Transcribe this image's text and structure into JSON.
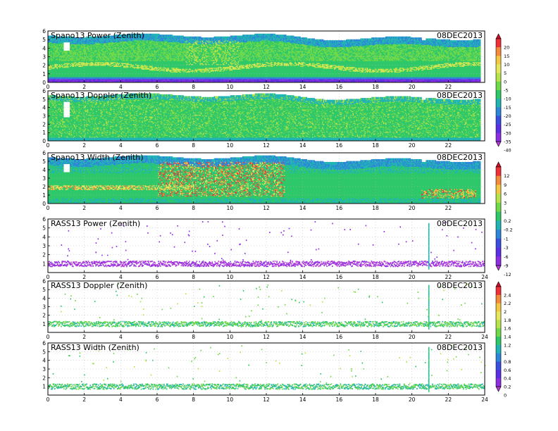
{
  "chart_data": [
    {
      "type": "heatmap",
      "title": "Spano13 Power (Zenith)",
      "date": "08DEC2013",
      "xlim": [
        0,
        24
      ],
      "ylim": [
        0,
        6
      ],
      "xticks": [
        0,
        2,
        4,
        6,
        8,
        10,
        12,
        14,
        16,
        18,
        20,
        22
      ],
      "yticks": [
        0,
        1,
        2,
        3,
        4,
        5,
        6
      ],
      "grid": true,
      "variable": "power",
      "coverage": "full"
    },
    {
      "type": "heatmap",
      "title": "Spano13 Doppler (Zenith)",
      "date": "08DEC2013",
      "xlim": [
        0,
        24
      ],
      "ylim": [
        0,
        6
      ],
      "xticks": [
        0,
        2,
        4,
        6,
        8,
        10,
        12,
        14,
        16,
        18,
        20,
        22
      ],
      "yticks": [
        0,
        1,
        2,
        3,
        4,
        5,
        6
      ],
      "grid": true,
      "variable": "doppler",
      "coverage": "full"
    },
    {
      "type": "heatmap",
      "title": "Spano13 Width (Zenith)",
      "date": "08DEC2013",
      "xlim": [
        0,
        24
      ],
      "ylim": [
        0,
        6
      ],
      "xticks": [
        0,
        2,
        4,
        6,
        8,
        10,
        12,
        14,
        16,
        18,
        20,
        22
      ],
      "yticks": [
        0,
        1,
        2,
        3,
        4,
        5,
        6
      ],
      "grid": true,
      "variable": "width",
      "coverage": "full"
    },
    {
      "type": "scatter",
      "title": "RASS13 Power (Zenith)",
      "date": "08DEC2013",
      "xlim": [
        0,
        24
      ],
      "ylim": [
        0,
        6
      ],
      "xticks": [
        0,
        2,
        4,
        6,
        8,
        10,
        12,
        14,
        16,
        18,
        20,
        22,
        24
      ],
      "yticks": [
        1,
        2,
        3,
        4,
        5,
        6
      ],
      "grid": true,
      "variable": "rass_power",
      "coverage": "sparse"
    },
    {
      "type": "scatter",
      "title": "RASS13 Doppler (Zenith)",
      "date": "08DEC2013",
      "xlim": [
        0,
        24
      ],
      "ylim": [
        0,
        6
      ],
      "xticks": [
        0,
        2,
        4,
        6,
        8,
        10,
        12,
        14,
        16,
        18,
        20,
        22,
        24
      ],
      "yticks": [
        1,
        2,
        3,
        4,
        5,
        6
      ],
      "grid": true,
      "variable": "rass_doppler",
      "coverage": "sparse"
    },
    {
      "type": "scatter",
      "title": "RASS13 Width (Zenith)",
      "date": "08DEC2013",
      "xlim": [
        0,
        24
      ],
      "ylim": [
        0,
        6
      ],
      "xticks": [
        0,
        2,
        4,
        6,
        8,
        10,
        12,
        14,
        16,
        18,
        20,
        22,
        24
      ],
      "yticks": [
        1,
        2,
        3,
        4,
        5,
        6
      ],
      "grid": true,
      "variable": "rass_width",
      "coverage": "sparse"
    }
  ],
  "colorbars": [
    {
      "levels": [
        "20",
        "15",
        "10",
        "5",
        "0",
        "-5",
        "-10",
        "-15",
        "-20",
        "-25",
        "-30",
        "-35",
        "-40"
      ],
      "colors": [
        "#d0102a",
        "#f03038",
        "#f58a3a",
        "#f5c842",
        "#e6e85a",
        "#b6e34a",
        "#6fd94a",
        "#2ec86a",
        "#21b4b4",
        "#2e86d9",
        "#3a4fe0",
        "#5b2fe3",
        "#8d2ee3",
        "#b83bd9"
      ]
    },
    {
      "levels": [
        "12",
        "9",
        "6",
        "3",
        "1",
        "0.2",
        "-0.2",
        "-1",
        "-3",
        "-6",
        "-9",
        "-12"
      ],
      "colors": [
        "#d0102a",
        "#f03038",
        "#f58a3a",
        "#f5c842",
        "#b6e34a",
        "#6fd94a",
        "#2ec86a",
        "#21b4b4",
        "#2e86d9",
        "#3a4fe0",
        "#5b2fe3",
        "#8d2ee3",
        "#b83bd9"
      ]
    },
    {
      "levels": [
        "2.4",
        "2.2",
        "2",
        "1.8",
        "1.6",
        "1.4",
        "1.2",
        "1",
        "0.8",
        "0.6",
        "0.4",
        "0.2",
        "0"
      ],
      "colors": [
        "#d0102a",
        "#f03038",
        "#f58a3a",
        "#f5c842",
        "#e6e85a",
        "#b6e34a",
        "#6fd94a",
        "#2ec86a",
        "#21b4b4",
        "#2e86d9",
        "#3a4fe0",
        "#5b2fe3",
        "#8d2ee3",
        "#b83bd9"
      ]
    }
  ]
}
